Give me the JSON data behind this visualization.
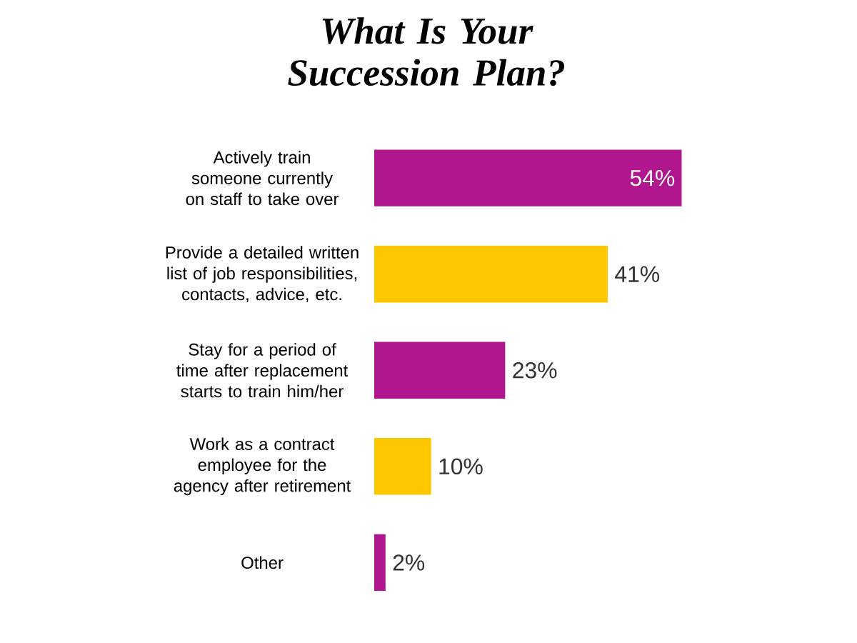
{
  "chart_data": {
    "type": "bar",
    "orientation": "horizontal",
    "title": "What Is Your Succession Plan?",
    "categories": [
      "Actively train someone currently on staff to take over",
      "Provide a detailed written list of job responsibilities, contacts, advice, etc.",
      "Stay for a period of time after replacement starts to train him/her",
      "Work as a contract employee for the agency after retirement",
      "Other"
    ],
    "values": [
      54,
      41,
      23,
      10,
      2
    ],
    "value_labels": [
      "54%",
      "41%",
      "23%",
      "10%",
      "2%"
    ],
    "colors": [
      "#b0178e",
      "#fdc800",
      "#b0178e",
      "#fdc800",
      "#b0178e"
    ]
  }
}
